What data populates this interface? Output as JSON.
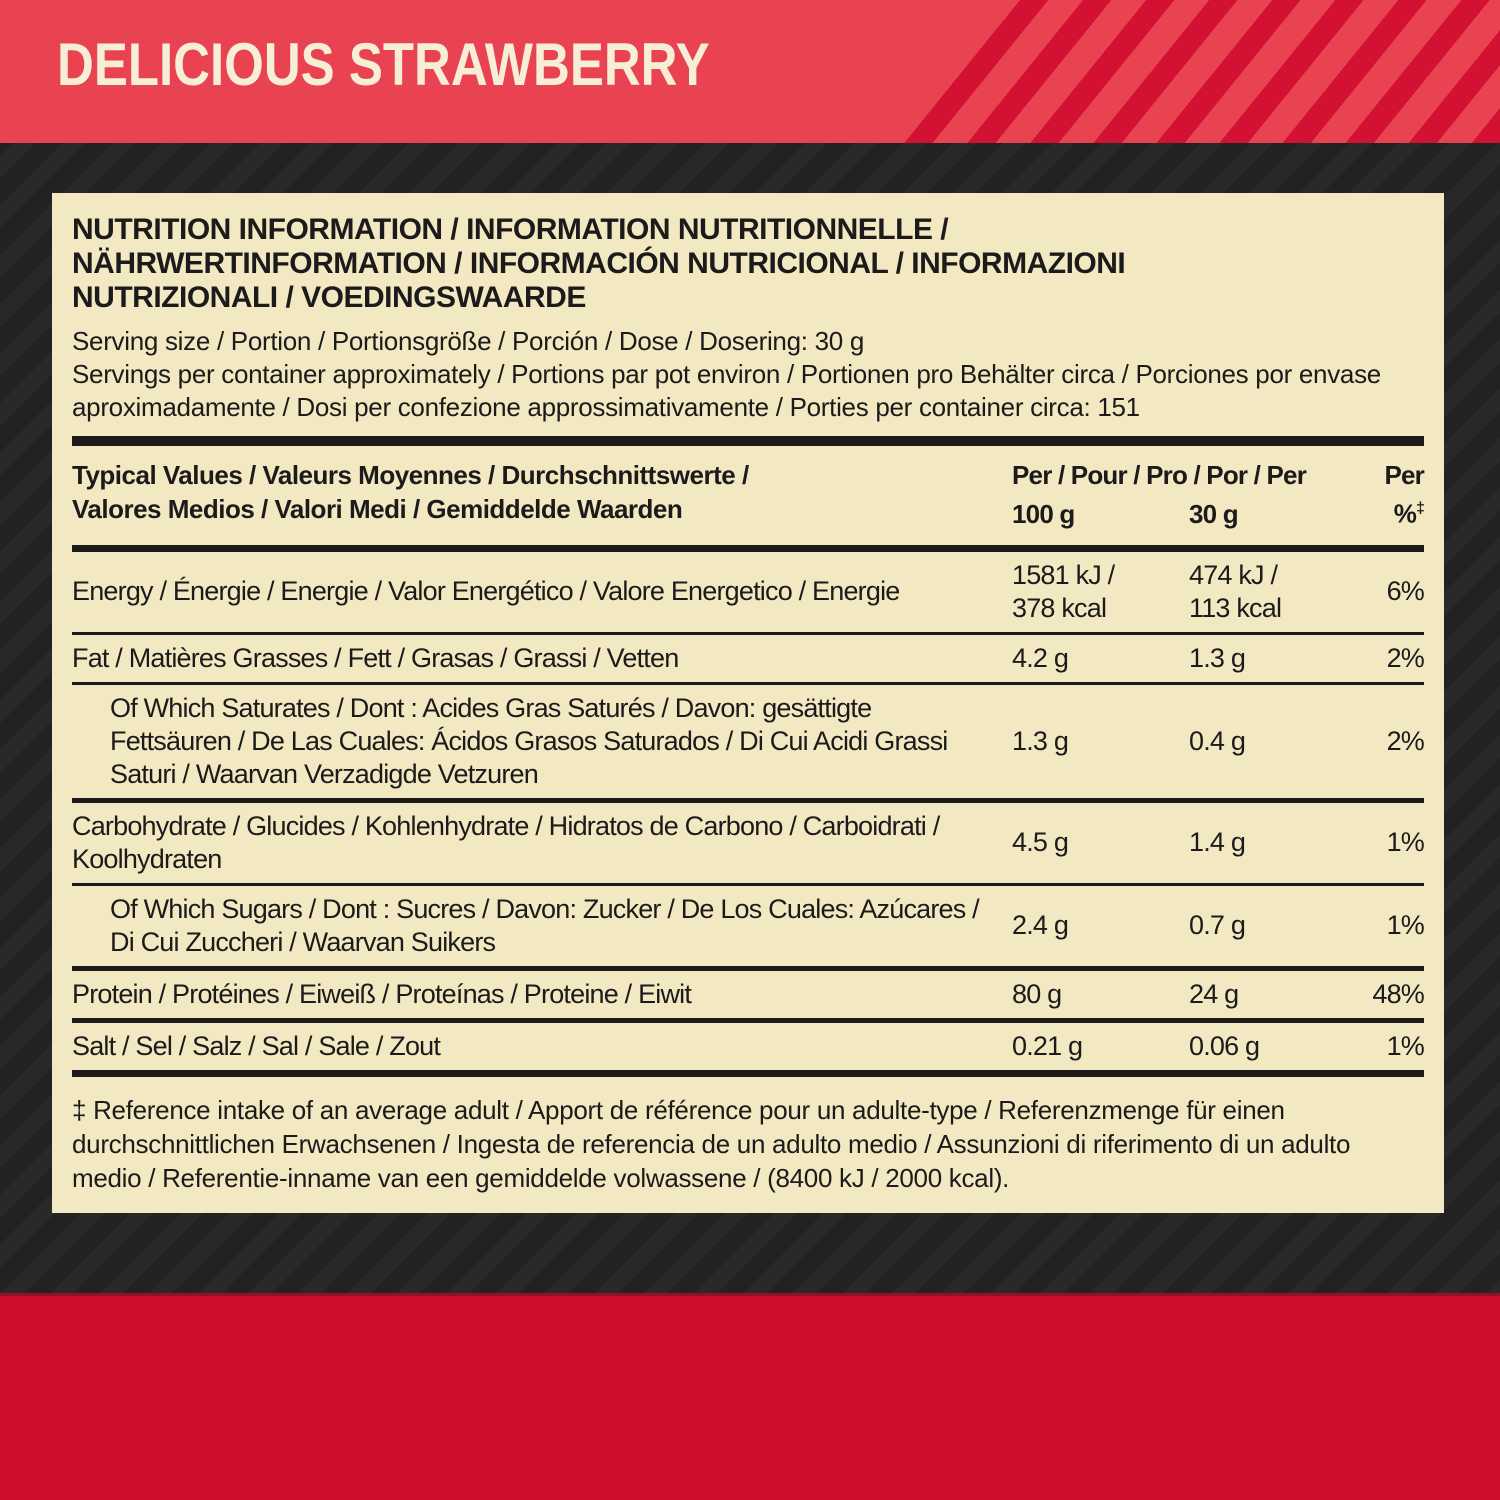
{
  "banner": {
    "title": "DELICIOUS STRAWBERRY"
  },
  "colors": {
    "banner_red": "#e94352",
    "banner_stripe_red": "#d31133",
    "bottom_band_red": "#ce0e2d",
    "background_dark": "#242122",
    "background_stripe": "#2b282a",
    "panel_cream": "#f2e8c1",
    "ink": "#1d1a1b",
    "title_cream": "#f6eed6"
  },
  "panel": {
    "heading_lines": [
      "NUTRITION INFORMATION / INFORMATION NUTRITIONNELLE /",
      "NÄHRWERTINFORMATION / INFORMACIÓN NUTRICIONAL / INFORMAZIONI",
      "NUTRIZIONALI / VOEDINGSWAARDE"
    ],
    "serving_size": "Serving size / Portion / Portionsgröße / Porción / Dose / Dosering: 30 g",
    "servings_per_container": "Servings per container approximately / Portions par pot environ / Portionen pro Behälter circa / Porciones por envase aproximadamente / Dosi per confezione approssimativamente / Porties per container circa: 151",
    "table": {
      "header": {
        "left_lines": [
          "Typical Values / Valeurs Moyennes / Durchschnittswerte /",
          "Valores Medios / Valori Medi / Gemiddelde Waarden"
        ],
        "per_span": "Per / Pour / Pro / Por / Per",
        "per_last": "Per",
        "col_100": "100 g",
        "col_30": "30 g",
        "pct_symbol": "%",
        "pct_sup": "‡"
      },
      "rows": [
        {
          "label": "Energy / Énergie / Energie / Valor Energético / Valore Energetico / Energie",
          "per100": "1581 kJ /\n378 kcal",
          "per30": "474 kJ /\n113 kcal",
          "pct": "6%",
          "indent": false,
          "rule_after": "thin"
        },
        {
          "label": "Fat / Matières Grasses / Fett / Grasas / Grassi / Vetten",
          "per100": "4.2 g",
          "per30": "1.3 g",
          "pct": "2%",
          "indent": false,
          "rule_after": "thin"
        },
        {
          "label": "Of Which Saturates / Dont : Acides Gras Saturés / Davon: gesättigte Fettsäuren / De Las Cuales: Ácidos Grasos Saturados / Di Cui Acidi Grassi Saturi / Waarvan Verzadigde Vetzuren",
          "per100": "1.3 g",
          "per30": "0.4 g",
          "pct": "2%",
          "indent": true,
          "rule_after": "thick"
        },
        {
          "label": "Carbohydrate / Glucides / Kohlenhydrate / Hidratos de Carbono / Carboidrati / Koolhydraten",
          "per100": "4.5 g",
          "per30": "1.4 g",
          "pct": "1%",
          "indent": false,
          "rule_after": "thin"
        },
        {
          "label": "Of Which Sugars / Dont : Sucres / Davon: Zucker / De Los Cuales: Azúcares / Di Cui Zuccheri / Waarvan Suikers",
          "per100": "2.4 g",
          "per30": "0.7 g",
          "pct": "1%",
          "indent": true,
          "rule_after": "thick"
        },
        {
          "label": "Protein / Protéines / Eiweiß / Proteínas / Proteine / Eiwit",
          "per100": "80 g",
          "per30": "24 g",
          "pct": "48%",
          "indent": false,
          "rule_after": "thick"
        },
        {
          "label": "Salt / Sel / Salz / Sal / Sale / Zout",
          "per100": "0.21 g",
          "per30": "0.06 g",
          "pct": "1%",
          "indent": false,
          "rule_after": "final"
        }
      ]
    },
    "footnote": "‡ Reference intake of an average adult / Apport de référence pour un adulte-type / Referenzmenge für einen durchschnittlichen Erwachsenen / Ingesta de referencia de un adulto medio / Assunzioni di riferimento di un adulto medio / Referentie-inname van een gemiddelde volwassene / (8400 kJ / 2000 kcal)."
  }
}
